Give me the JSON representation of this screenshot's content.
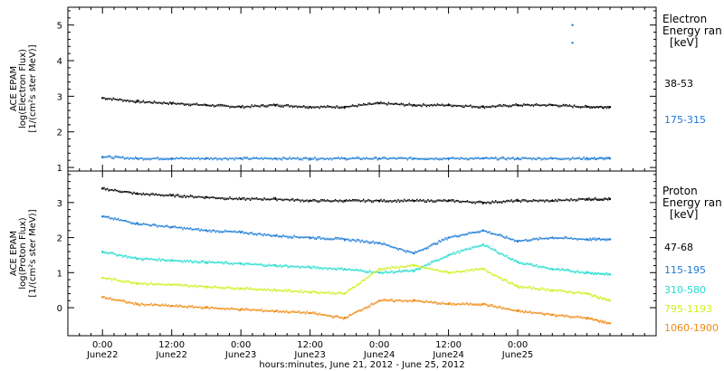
{
  "chart_data": [
    {
      "type": "scatter",
      "panel": "electron",
      "ylabel_line1": "ACE EPAM",
      "ylabel_line2": "log(Electron Flux)",
      "ylabel_line3": "[1/(cm²s ster MeV)]",
      "legend_title1": "Electron",
      "legend_title2": "Energy ran",
      "legend_unit": "[keV]",
      "ylim": [
        0.9,
        5.5
      ],
      "yticks": [
        "1",
        "2",
        "3",
        "4",
        "5"
      ],
      "series": [
        {
          "name": "38-53",
          "color": "#000000",
          "x": [
            0,
            6,
            12,
            18,
            24,
            30,
            36,
            42,
            48,
            54,
            60,
            66,
            72,
            78,
            84,
            88
          ],
          "values": [
            2.95,
            2.85,
            2.8,
            2.75,
            2.7,
            2.75,
            2.7,
            2.7,
            2.8,
            2.75,
            2.75,
            2.7,
            2.75,
            2.75,
            2.7,
            2.7
          ]
        },
        {
          "name": "175-315",
          "color": "#1a7ad6",
          "x": [
            0,
            6,
            12,
            18,
            24,
            30,
            36,
            42,
            48,
            54,
            60,
            66,
            72,
            78,
            84,
            88
          ],
          "values": [
            1.3,
            1.25,
            1.25,
            1.25,
            1.25,
            1.25,
            1.25,
            1.25,
            1.25,
            1.25,
            1.25,
            1.25,
            1.25,
            1.25,
            1.25,
            1.25
          ]
        }
      ],
      "spikes": [
        {
          "x": 81.5,
          "values": [
            5.0,
            4.5
          ]
        }
      ]
    },
    {
      "type": "scatter",
      "panel": "proton",
      "ylabel_line1": "ACE EPAM",
      "ylabel_line2": "log(Proton Flux)",
      "ylabel_line3": "[1/(cm²s ster MeV)]",
      "legend_title1": "Proton",
      "legend_title2": "Energy ran",
      "legend_unit": "[keV]",
      "ylim": [
        -0.8,
        3.9
      ],
      "yticks": [
        "0",
        "1",
        "2",
        "3"
      ],
      "series": [
        {
          "name": "47-68",
          "color": "#000000",
          "x": [
            0,
            6,
            12,
            18,
            24,
            30,
            36,
            42,
            48,
            54,
            60,
            66,
            72,
            78,
            84,
            88
          ],
          "values": [
            3.4,
            3.25,
            3.2,
            3.15,
            3.1,
            3.1,
            3.05,
            3.05,
            3.05,
            3.05,
            3.05,
            3.0,
            3.05,
            3.05,
            3.1,
            3.1
          ]
        },
        {
          "name": "115-195",
          "color": "#1a7ad6",
          "x": [
            0,
            6,
            12,
            18,
            24,
            30,
            36,
            42,
            48,
            54,
            60,
            66,
            72,
            78,
            84,
            88
          ],
          "values": [
            2.6,
            2.4,
            2.3,
            2.2,
            2.15,
            2.05,
            2.0,
            1.95,
            1.85,
            1.55,
            2.0,
            2.2,
            1.9,
            2.0,
            1.95,
            1.95
          ]
        },
        {
          "name": "310-580",
          "color": "#22dcd0",
          "x": [
            0,
            6,
            12,
            18,
            24,
            30,
            36,
            42,
            48,
            54,
            60,
            66,
            72,
            78,
            84,
            88
          ],
          "values": [
            1.6,
            1.4,
            1.35,
            1.3,
            1.25,
            1.2,
            1.15,
            1.1,
            1.0,
            1.05,
            1.5,
            1.8,
            1.3,
            1.1,
            1.0,
            0.95
          ]
        },
        {
          "name": "795-1193",
          "color": "#cff020",
          "x": [
            0,
            6,
            12,
            18,
            24,
            30,
            36,
            42,
            48,
            54,
            60,
            66,
            72,
            78,
            84,
            88
          ],
          "values": [
            0.85,
            0.7,
            0.65,
            0.6,
            0.55,
            0.5,
            0.45,
            0.4,
            1.1,
            1.2,
            1.0,
            1.1,
            0.6,
            0.5,
            0.4,
            0.2
          ]
        },
        {
          "name": "1060-1900",
          "color": "#f08a10",
          "x": [
            0,
            6,
            12,
            18,
            24,
            30,
            36,
            42,
            48,
            54,
            60,
            66,
            72,
            78,
            84,
            88
          ],
          "values": [
            0.3,
            0.1,
            0.05,
            0.0,
            -0.05,
            -0.1,
            -0.15,
            -0.3,
            0.2,
            0.2,
            0.1,
            0.1,
            -0.1,
            -0.2,
            -0.3,
            -0.45
          ]
        }
      ]
    }
  ],
  "x_axis": {
    "label": "hours:minutes, June 21, 2012 - June 25, 2012",
    "xlim": [
      -6,
      96
    ],
    "ticks": [
      {
        "x": 0,
        "time": "0:00",
        "day": "June22"
      },
      {
        "x": 12,
        "time": "12:00",
        "day": "June22"
      },
      {
        "x": 24,
        "time": "0:00",
        "day": "June23"
      },
      {
        "x": 36,
        "time": "12:00",
        "day": "June23"
      },
      {
        "x": 48,
        "time": "0:00",
        "day": "June24"
      },
      {
        "x": 60,
        "time": "12:00",
        "day": "June24"
      },
      {
        "x": 72,
        "time": "0:00",
        "day": "June25"
      }
    ],
    "minor_step_hours": 2
  }
}
